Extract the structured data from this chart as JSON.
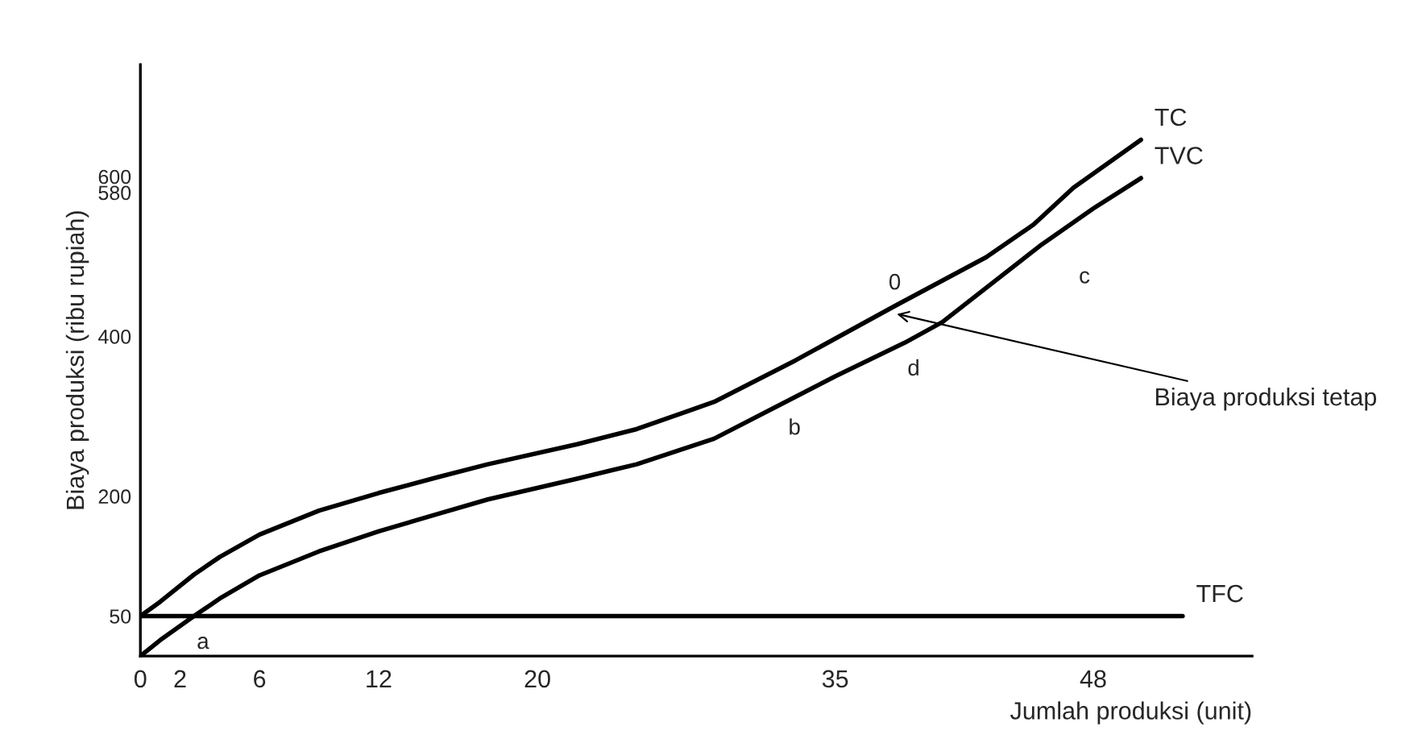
{
  "chart_data": {
    "type": "line",
    "xlabel": "Jumlah produksi (unit)",
    "ylabel": "Biaya produksi (ribu rupiah)",
    "xlim": [
      0,
      56
    ],
    "ylim": [
      0,
      740
    ],
    "xticks": [
      0,
      2,
      6,
      12,
      20,
      35,
      48
    ],
    "yticks": [
      50,
      200,
      400,
      580,
      600
    ],
    "grid": false,
    "legend": false,
    "marker": "none",
    "line_style": "solid",
    "series": [
      {
        "name": "TC",
        "color": "#000000",
        "x": [
          0,
          1,
          2.7,
          4,
          6,
          9,
          12,
          15,
          17.5,
          22,
          25,
          28.9,
          33,
          38,
          42.6,
          45,
          47,
          50.4
        ],
        "values": [
          50,
          68,
          102,
          124,
          152,
          182,
          204,
          224,
          240,
          265,
          284,
          318,
          370,
          438,
          499,
          540,
          586,
          646
        ]
      },
      {
        "name": "TVC",
        "color": "#000000",
        "x": [
          0,
          1,
          2.7,
          4,
          6,
          9,
          12,
          15,
          17.5,
          22,
          25,
          28.9,
          32.5,
          35,
          38.5,
          40.4,
          45.3,
          48,
          50.4
        ],
        "values": [
          0,
          20,
          50,
          72,
          101,
          131,
          156,
          178,
          196,
          222,
          240,
          272,
          318,
          350,
          392,
          418,
          513,
          560,
          598
        ]
      },
      {
        "name": "TFC",
        "color": "#000000",
        "x": [
          0,
          52.5
        ],
        "values": [
          50,
          50
        ]
      }
    ],
    "annotations": [
      {
        "text": "a",
        "x": 2.7,
        "y": 50
      },
      {
        "text": "b",
        "x": 32.5,
        "y": 318
      },
      {
        "text": "d",
        "x": 38.5,
        "y": 392
      },
      {
        "text": "0",
        "x": 38,
        "y": 438
      },
      {
        "text": "c",
        "x": 45.3,
        "y": 513
      },
      {
        "text": "Biaya produksi tetap",
        "x": 38.1,
        "y": 428
      }
    ]
  }
}
